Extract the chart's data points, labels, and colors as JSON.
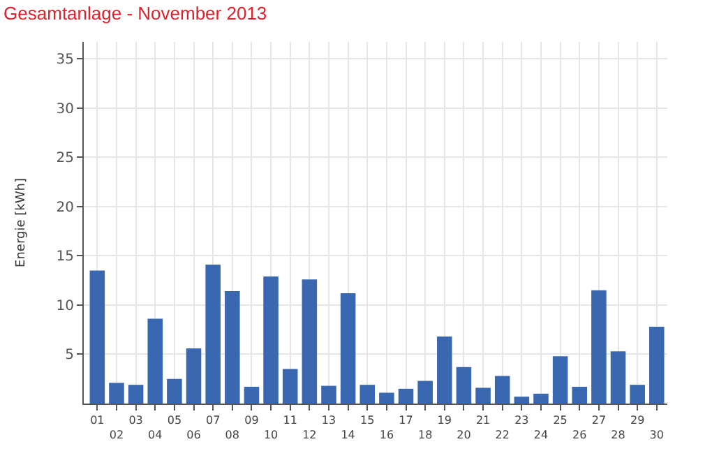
{
  "chart_data": {
    "type": "bar",
    "title": "Gesamtanlage - November 2013",
    "ylabel": "Energie [kWh]",
    "categories": [
      "01",
      "02",
      "03",
      "04",
      "05",
      "06",
      "07",
      "08",
      "09",
      "10",
      "11",
      "12",
      "13",
      "14",
      "15",
      "16",
      "17",
      "18",
      "19",
      "20",
      "21",
      "22",
      "23",
      "24",
      "25",
      "26",
      "27",
      "28",
      "29",
      "30"
    ],
    "values": [
      13.5,
      2.1,
      1.9,
      8.6,
      2.5,
      5.6,
      14.1,
      11.4,
      1.7,
      12.9,
      3.5,
      12.6,
      1.8,
      11.2,
      1.9,
      1.1,
      1.5,
      2.3,
      6.8,
      3.7,
      1.6,
      2.8,
      0.7,
      1.0,
      4.8,
      1.7,
      11.5,
      5.3,
      1.9,
      7.8
    ],
    "color": "#3a68b0",
    "ylim": [
      0,
      36.7
    ],
    "yticks": [
      5,
      10,
      15,
      20,
      25,
      30,
      35
    ],
    "grid": true
  }
}
